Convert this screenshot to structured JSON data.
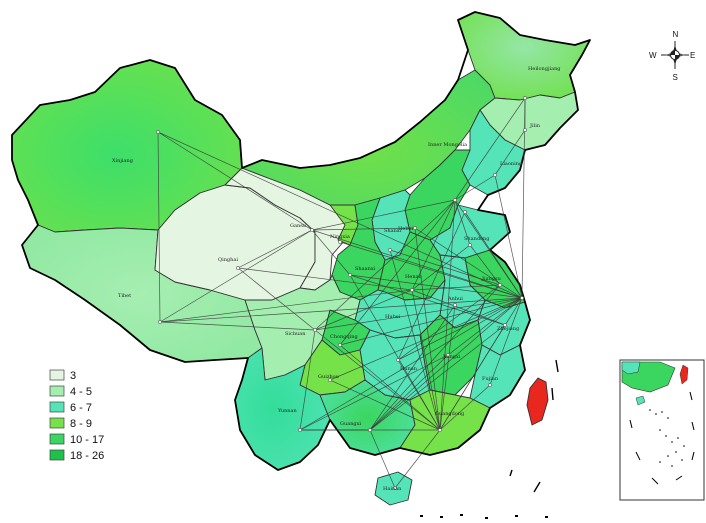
{
  "legend": {
    "items": [
      {
        "label": "3",
        "color": "#e4f5e1"
      },
      {
        "label": "4 - 5",
        "color": "#a4eeb0"
      },
      {
        "label": "6 - 7",
        "color": "#55e4b8"
      },
      {
        "label": "8 - 9",
        "color": "#76e24a"
      },
      {
        "label": "10 - 17",
        "color": "#3ad65f"
      },
      {
        "label": "18 - 26",
        "color": "#1dc24a"
      }
    ]
  },
  "compass": {
    "n": "N",
    "s": "S",
    "e": "E",
    "w": "W"
  },
  "provinces": {
    "heilongjiang": "Heilongjiang",
    "jilin": "Jilin",
    "liaoning": "Liaoning",
    "inner_mongolia": "Inner Mongolia",
    "xinjiang": "Xinjiang",
    "tibet": "Tibet",
    "qinghai": "Qinghai",
    "gansu": "Gansu",
    "sichuan": "Sichuan",
    "yunnan": "Yunnan",
    "hebei": "Hebei",
    "shandong": "Shandong",
    "henan": "Henan",
    "hunan": "Hunan",
    "fujian": "Fujian",
    "guangdong": "Guangdong",
    "hainan": "Hainan",
    "guangxi": "Guangxi",
    "zhejiang": "Zhejiang",
    "jiangxi": "Jiangxi",
    "hubei": "Hubei",
    "anhui": "Anhui",
    "jiangsu": "Jiangsu",
    "shaanxi": "Shaanxi",
    "shanxi": "Shanxi",
    "ningxia": "Ningxia",
    "guizhou": "Guizhou",
    "chongqing": "Chongqing"
  },
  "colors": {
    "class_3": "#e4f5e1",
    "class_4_5": "#a4eeb0",
    "class_6_7": "#55e4b8",
    "class_8_9": "#76e24a",
    "class_10_17": "#3ad65f",
    "class_18_26": "#1dc24a",
    "taiwan": "#e8271f"
  }
}
